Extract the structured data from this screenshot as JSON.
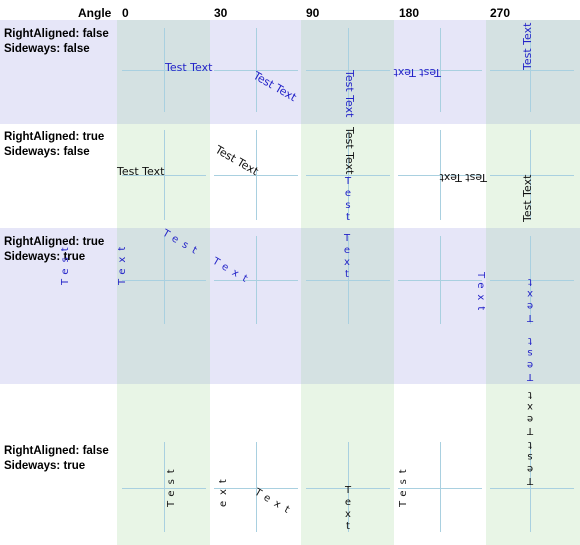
{
  "header": {
    "angle_label": "Angle",
    "angles": [
      "0",
      "30",
      "90",
      "180",
      "270"
    ]
  },
  "rows": [
    {
      "line1": "RightAligned: false",
      "line2": "Sideways: false"
    },
    {
      "line1": "RightAligned: true",
      "line2": "Sideways: false"
    },
    {
      "line1": "RightAligned: true",
      "line2": "Sideways: true"
    },
    {
      "line1": "RightAligned: false",
      "line2": "Sideways: true"
    }
  ],
  "sample_text": "Test Text",
  "sample_letters": [
    "T",
    "e",
    "s",
    "t",
    "T",
    "e",
    "x",
    "t"
  ],
  "colors": {
    "lavender_band": "#e6e6f8",
    "green_column": "#e8f5e6",
    "overlap": "#d4e1e2",
    "guide_line": "#a9d0e0",
    "text_blue": "#2323c8",
    "text_black": "#111111"
  }
}
